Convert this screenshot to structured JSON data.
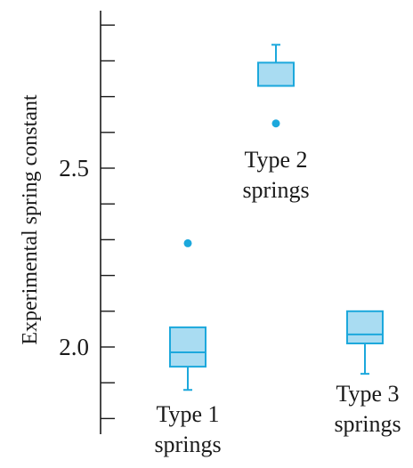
{
  "chart_data": {
    "type": "box",
    "title": "",
    "xlabel": "",
    "ylabel": "Experimental spring constant",
    "ylim": [
      1.79,
      2.95
    ],
    "tick_values": [
      1.8,
      1.9,
      2.0,
      2.1,
      2.2,
      2.3,
      2.4,
      2.5,
      2.6,
      2.7,
      2.8,
      2.9
    ],
    "tick_labels": [
      {
        "value": 2.0,
        "text": "2.0"
      },
      {
        "value": 2.5,
        "text": "2.5"
      }
    ],
    "grid": false,
    "series": [
      {
        "label_lines": [
          "Type 1",
          "springs"
        ],
        "whisker_low": 1.88,
        "q1": 1.945,
        "median": 1.985,
        "q3": 2.055,
        "whisker_high": 2.055,
        "outliers": [
          2.29
        ]
      },
      {
        "label_lines": [
          "Type 2",
          "springs"
        ],
        "whisker_low": 2.73,
        "q1": 2.73,
        "median": 2.73,
        "q3": 2.795,
        "whisker_high": 2.845,
        "outliers": [
          2.625
        ]
      },
      {
        "label_lines": [
          "Type 3",
          "springs"
        ],
        "whisker_low": 1.925,
        "q1": 2.01,
        "median": 2.035,
        "q3": 2.1,
        "whisker_high": 2.1,
        "outliers": []
      }
    ],
    "colors": {
      "box_stroke": "#1ca8dc",
      "box_fill": "#a9dcf2",
      "axis": "#1a1a1a"
    }
  }
}
